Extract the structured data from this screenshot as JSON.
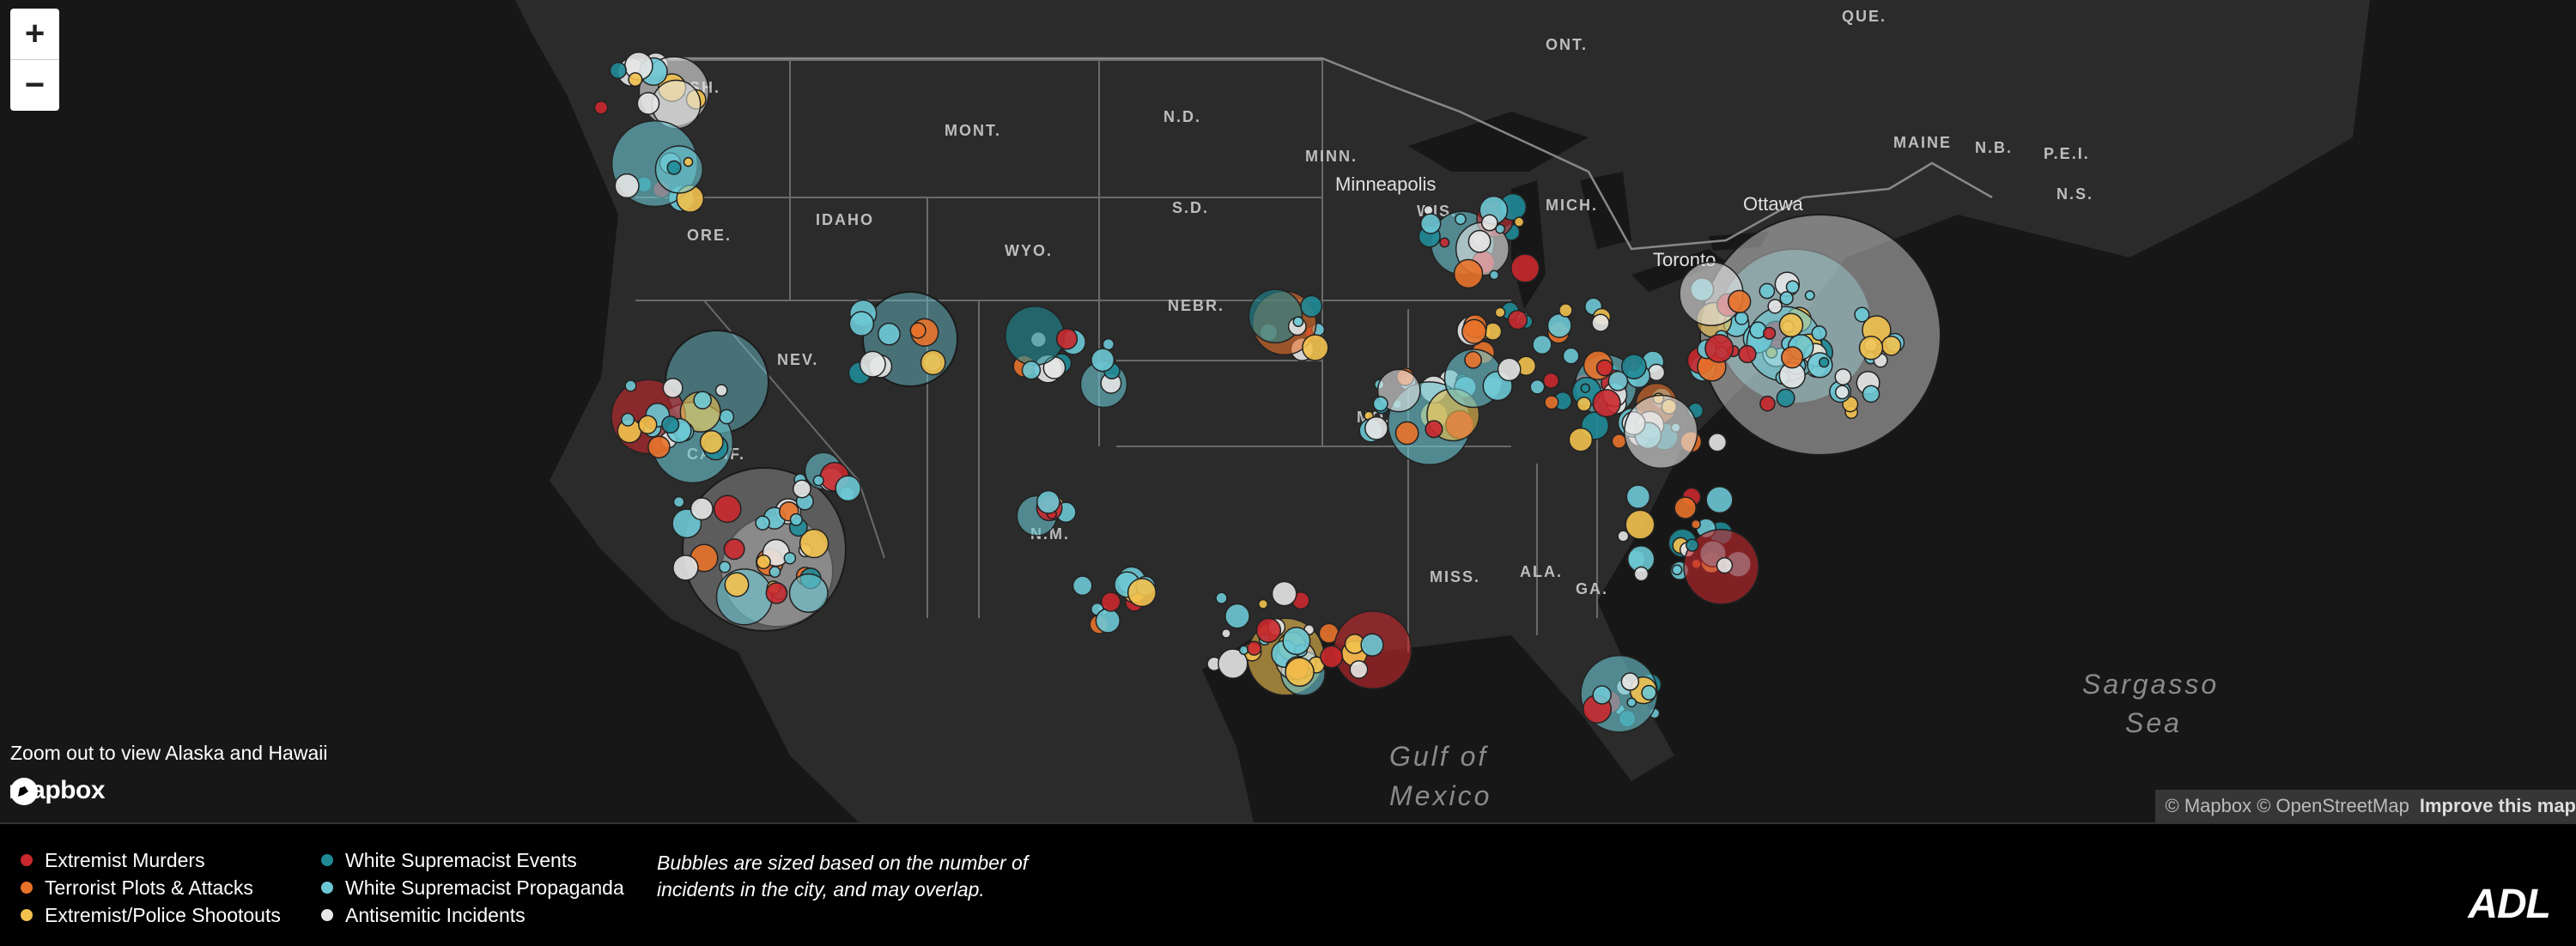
{
  "zoom": {
    "in_label": "+",
    "out_label": "−"
  },
  "hint": "Zoom out to view Alaska and Hawaii",
  "brand": {
    "mapbox": "mapbox",
    "adl": "ADL"
  },
  "attribution": {
    "text": "© Mapbox © OpenStreetMap",
    "improve": "Improve this map"
  },
  "map_labels": {
    "states": [
      "WASH.",
      "ORE.",
      "IDAHO",
      "MONT.",
      "N.D.",
      "S.D.",
      "WYO.",
      "NEBR.",
      "NEV.",
      "CALIF.",
      "N.M.",
      "MO.",
      "MISS.",
      "ALA.",
      "GA.",
      "MINN.",
      "WIS.",
      "MICH.",
      "MAINE",
      "N.B.",
      "P.E.I.",
      "N.S.",
      "ONT.",
      "QUE."
    ],
    "places": [
      "Minneapolis",
      "Ottawa",
      "Toronto"
    ],
    "water": [
      "Gulf of",
      "Mexico",
      "Sargasso",
      "Sea"
    ]
  },
  "legend": {
    "col1": [
      {
        "label": "Extremist Murders",
        "color": "#c8282d"
      },
      {
        "label": "Terrorist Plots & Attacks",
        "color": "#e8722a"
      },
      {
        "label": "Extremist/Police Shootouts",
        "color": "#f2c14e"
      }
    ],
    "col2": [
      {
        "label": "White Supremacist Events",
        "color": "#1f8a96"
      },
      {
        "label": "White Supremacist Propaganda",
        "color": "#6cc8d4"
      },
      {
        "label": "Antisemitic Incidents",
        "color": "#e6e6e6"
      }
    ],
    "note": "Bubbles are sized based on the number of incidents in the city, and may overlap."
  }
}
